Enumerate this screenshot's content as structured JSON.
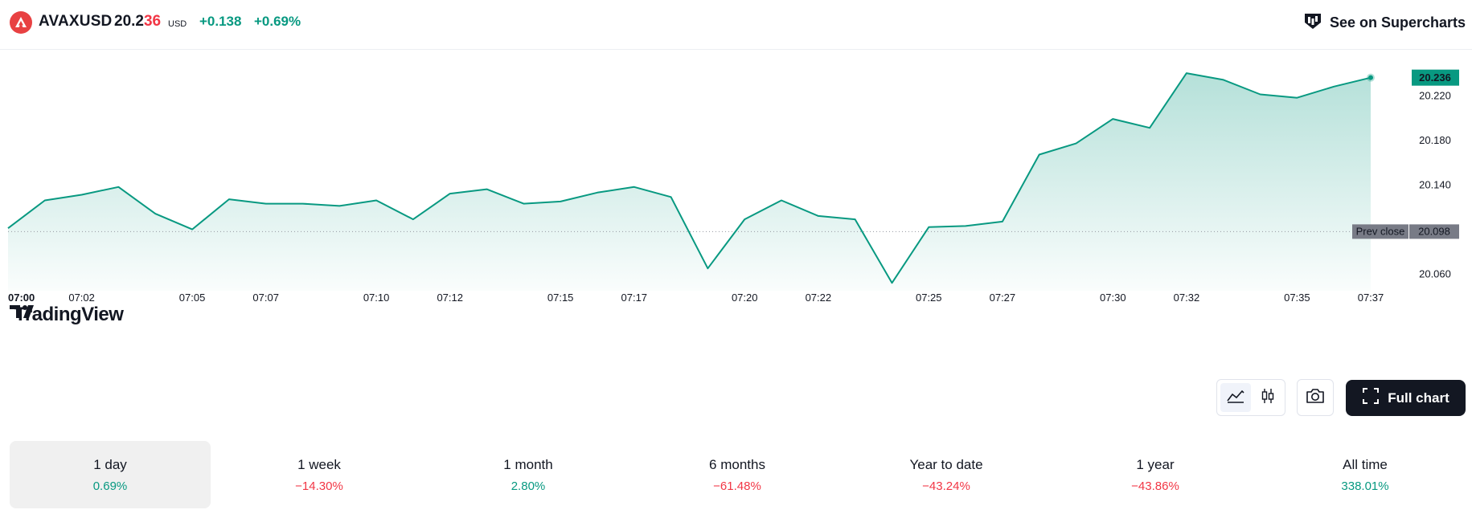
{
  "header": {
    "symbol": "AVAXUSD",
    "price_main": "20.2",
    "price_highlight": "36",
    "currency": "USD",
    "change_abs": "+0.138",
    "change_pct": "+0.69%",
    "supercharts_label": "See on Supercharts"
  },
  "brand": {
    "name": "TradingView"
  },
  "colors": {
    "accent": "#089981",
    "negative": "#f23645",
    "logo": "#e84142"
  },
  "chart_data": {
    "type": "area",
    "x": [
      "07:00",
      "07:01",
      "07:02",
      "07:03",
      "07:04",
      "07:05",
      "07:06",
      "07:07",
      "07:08",
      "07:09",
      "07:10",
      "07:11",
      "07:12",
      "07:13",
      "07:14",
      "07:15",
      "07:16",
      "07:17",
      "07:18",
      "07:19",
      "07:20",
      "07:21",
      "07:22",
      "07:23",
      "07:24",
      "07:25",
      "07:26",
      "07:27",
      "07:28",
      "07:29",
      "07:30",
      "07:31",
      "07:32",
      "07:33",
      "07:34",
      "07:35",
      "07:36",
      "07:37"
    ],
    "values": [
      20.101,
      20.126,
      20.131,
      20.138,
      20.114,
      20.1,
      20.127,
      20.123,
      20.123,
      20.121,
      20.126,
      20.109,
      20.132,
      20.136,
      20.123,
      20.125,
      20.133,
      20.138,
      20.129,
      20.065,
      20.109,
      20.126,
      20.112,
      20.109,
      20.052,
      20.102,
      20.103,
      20.107,
      20.167,
      20.177,
      20.199,
      20.191,
      20.24,
      20.234,
      20.221,
      20.218,
      20.228,
      20.236
    ],
    "x_tick_labels": [
      "07:00",
      "07:02",
      "07:05",
      "07:07",
      "07:10",
      "07:12",
      "07:15",
      "07:17",
      "07:20",
      "07:22",
      "07:25",
      "07:27",
      "07:30",
      "07:32",
      "07:35",
      "07:37"
    ],
    "y_tick_labels": [
      "20.220",
      "20.180",
      "20.140",
      "20.060"
    ],
    "ylim": [
      20.045,
      20.248
    ],
    "last_value_label": "20.236",
    "prev_close": 20.098,
    "prev_close_label": "Prev close",
    "prev_close_value_label": "20.098",
    "grid": false
  },
  "toolbar": {
    "area_icon": "area-chart-icon",
    "candles_icon": "candlestick-icon",
    "camera_icon": "camera-icon",
    "full_chart_label": "Full chart"
  },
  "periods": [
    {
      "label": "1 day",
      "value": "0.69%",
      "sign": "pos",
      "selected": true
    },
    {
      "label": "1 week",
      "value": "−14.30%",
      "sign": "neg"
    },
    {
      "label": "1 month",
      "value": "2.80%",
      "sign": "pos"
    },
    {
      "label": "6 months",
      "value": "−61.48%",
      "sign": "neg"
    },
    {
      "label": "Year to date",
      "value": "−43.24%",
      "sign": "neg"
    },
    {
      "label": "1 year",
      "value": "−43.86%",
      "sign": "neg"
    },
    {
      "label": "All time",
      "value": "338.01%",
      "sign": "pos"
    }
  ]
}
